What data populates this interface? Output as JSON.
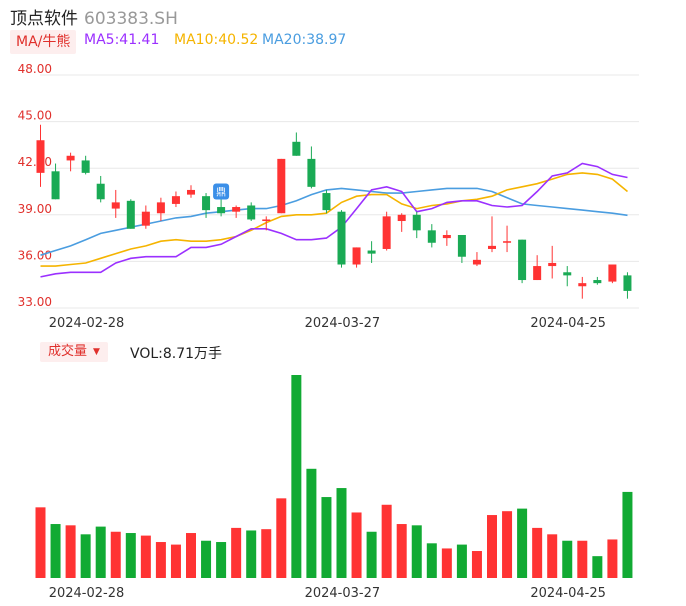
{
  "header": {
    "name": "顶点软件",
    "code": "603383.SH"
  },
  "ma_bar": {
    "tag": "MA/牛熊",
    "ma5": "MA5:41.41",
    "ma10": "MA10:40.52",
    "ma20": "MA20:38.97",
    "colors": {
      "ma5": "#9b30ff",
      "ma10": "#f5b400",
      "ma20": "#4a9de0"
    }
  },
  "volume_bar": {
    "tag": "成交量",
    "label": "VOL:8.71万手"
  },
  "colors": {
    "up": "#ff3333",
    "down": "#1aaa55",
    "vol_up": "#ff3333",
    "vol_down": "#11aa33",
    "axis_text": "#e0302c",
    "grid": "#e8e8e8"
  },
  "chart_data": [
    {
      "type": "candlestick",
      "y_ticks": [
        "48.00",
        "45.00",
        "42.00",
        "39.00",
        "36.00",
        "33.00"
      ],
      "ylim": [
        33,
        48
      ],
      "x_labels": [
        {
          "index": 0,
          "label": "2024-02-28"
        },
        {
          "index": 17,
          "label": "2024-03-27"
        },
        {
          "index": 32,
          "label": "2024-04-25"
        }
      ],
      "candles": [
        {
          "o": 41.7,
          "h": 44.8,
          "l": 40.8,
          "c": 43.8
        },
        {
          "o": 41.8,
          "h": 42.3,
          "l": 40.0,
          "c": 40.0
        },
        {
          "o": 42.5,
          "h": 43.0,
          "l": 41.8,
          "c": 42.8
        },
        {
          "o": 42.5,
          "h": 42.8,
          "l": 41.6,
          "c": 41.7
        },
        {
          "o": 41.0,
          "h": 41.5,
          "l": 39.8,
          "c": 40.0
        },
        {
          "o": 39.4,
          "h": 40.6,
          "l": 38.8,
          "c": 39.8
        },
        {
          "o": 39.9,
          "h": 40.0,
          "l": 38.1,
          "c": 38.1
        },
        {
          "o": 38.3,
          "h": 39.6,
          "l": 38.1,
          "c": 39.2
        },
        {
          "o": 39.1,
          "h": 40.1,
          "l": 38.6,
          "c": 39.8
        },
        {
          "o": 39.7,
          "h": 40.5,
          "l": 39.5,
          "c": 40.2
        },
        {
          "o": 40.3,
          "h": 40.9,
          "l": 40.1,
          "c": 40.6
        },
        {
          "o": 40.2,
          "h": 40.4,
          "l": 38.8,
          "c": 39.3
        },
        {
          "o": 39.5,
          "h": 40.9,
          "l": 38.9,
          "c": 39.1
        },
        {
          "o": 39.2,
          "h": 39.6,
          "l": 38.8,
          "c": 39.5
        },
        {
          "o": 39.6,
          "h": 39.8,
          "l": 38.6,
          "c": 38.7
        },
        {
          "o": 38.6,
          "h": 38.9,
          "l": 38.0,
          "c": 38.7
        },
        {
          "o": 39.1,
          "h": 42.6,
          "l": 39.1,
          "c": 42.6
        },
        {
          "o": 43.7,
          "h": 44.3,
          "l": 42.8,
          "c": 42.8
        },
        {
          "o": 42.6,
          "h": 43.4,
          "l": 40.7,
          "c": 40.8
        },
        {
          "o": 40.4,
          "h": 40.6,
          "l": 39.1,
          "c": 39.3
        },
        {
          "o": 39.2,
          "h": 39.3,
          "l": 35.6,
          "c": 35.8
        },
        {
          "o": 35.8,
          "h": 36.9,
          "l": 35.6,
          "c": 36.9
        },
        {
          "o": 36.7,
          "h": 37.3,
          "l": 35.9,
          "c": 36.5
        },
        {
          "o": 36.8,
          "h": 39.2,
          "l": 36.7,
          "c": 38.9
        },
        {
          "o": 38.6,
          "h": 39.1,
          "l": 37.9,
          "c": 39.0
        },
        {
          "o": 39.0,
          "h": 39.2,
          "l": 37.5,
          "c": 38.0
        },
        {
          "o": 38.0,
          "h": 38.4,
          "l": 36.9,
          "c": 37.2
        },
        {
          "o": 37.5,
          "h": 38.0,
          "l": 37.0,
          "c": 37.7
        },
        {
          "o": 37.7,
          "h": 37.7,
          "l": 35.9,
          "c": 36.3
        },
        {
          "o": 35.8,
          "h": 36.6,
          "l": 35.7,
          "c": 36.1
        },
        {
          "o": 36.8,
          "h": 38.9,
          "l": 36.6,
          "c": 37.0
        },
        {
          "o": 37.2,
          "h": 38.3,
          "l": 36.6,
          "c": 37.3
        },
        {
          "o": 37.4,
          "h": 37.4,
          "l": 34.6,
          "c": 34.8
        },
        {
          "o": 34.8,
          "h": 36.4,
          "l": 34.8,
          "c": 35.7
        },
        {
          "o": 35.7,
          "h": 37.0,
          "l": 34.9,
          "c": 35.9
        },
        {
          "o": 35.3,
          "h": 35.7,
          "l": 34.4,
          "c": 35.1
        },
        {
          "o": 34.4,
          "h": 35.0,
          "l": 33.6,
          "c": 34.6
        },
        {
          "o": 34.8,
          "h": 35.0,
          "l": 34.5,
          "c": 34.6
        },
        {
          "o": 34.7,
          "h": 35.8,
          "l": 34.6,
          "c": 35.8
        },
        {
          "o": 35.1,
          "h": 35.3,
          "l": 33.6,
          "c": 34.1
        }
      ],
      "ma5": [
        35.0,
        35.2,
        35.3,
        35.3,
        35.3,
        35.9,
        36.2,
        36.3,
        36.3,
        36.3,
        36.9,
        36.9,
        37.1,
        37.6,
        38.1,
        38.1,
        37.8,
        37.4,
        37.4,
        37.5,
        38.2,
        39.4,
        40.6,
        40.8,
        40.5,
        39.2,
        39.4,
        39.8,
        39.9,
        39.9,
        39.6,
        39.5,
        39.6,
        40.5,
        41.5,
        41.7,
        42.3,
        42.1,
        41.6,
        41.4
      ],
      "ma10": [
        35.7,
        35.7,
        35.8,
        35.9,
        36.2,
        36.5,
        36.8,
        37.0,
        37.3,
        37.4,
        37.3,
        37.3,
        37.4,
        37.6,
        38.0,
        38.5,
        38.9,
        39.0,
        39.0,
        39.1,
        39.8,
        40.2,
        40.3,
        40.3,
        39.7,
        39.4,
        39.6,
        39.7,
        39.9,
        40.0,
        40.2,
        40.6,
        40.8,
        41.0,
        41.3,
        41.6,
        41.7,
        41.6,
        41.3,
        40.5
      ],
      "ma20": [
        36.4,
        36.7,
        37.0,
        37.4,
        37.8,
        38.0,
        38.2,
        38.4,
        38.6,
        38.8,
        38.9,
        39.1,
        39.2,
        39.3,
        39.4,
        39.4,
        39.6,
        39.9,
        40.3,
        40.6,
        40.7,
        40.6,
        40.5,
        40.4,
        40.4,
        40.5,
        40.6,
        40.7,
        40.7,
        40.7,
        40.5,
        40.1,
        39.7,
        39.6,
        39.5,
        39.4,
        39.3,
        39.2,
        39.1,
        38.97
      ],
      "marker": {
        "index": 12,
        "price": 40.5,
        "label": "鼎"
      }
    },
    {
      "type": "bar",
      "title": "成交量",
      "values": [
        55,
        42,
        41,
        34,
        40,
        36,
        35,
        33,
        28,
        26,
        35,
        29,
        28,
        39,
        37,
        38,
        62,
        158,
        85,
        63,
        70,
        51,
        36,
        57,
        42,
        41,
        27,
        23,
        26,
        21,
        49,
        52,
        54,
        39,
        34,
        29,
        29,
        17,
        30,
        67
      ]
    }
  ]
}
